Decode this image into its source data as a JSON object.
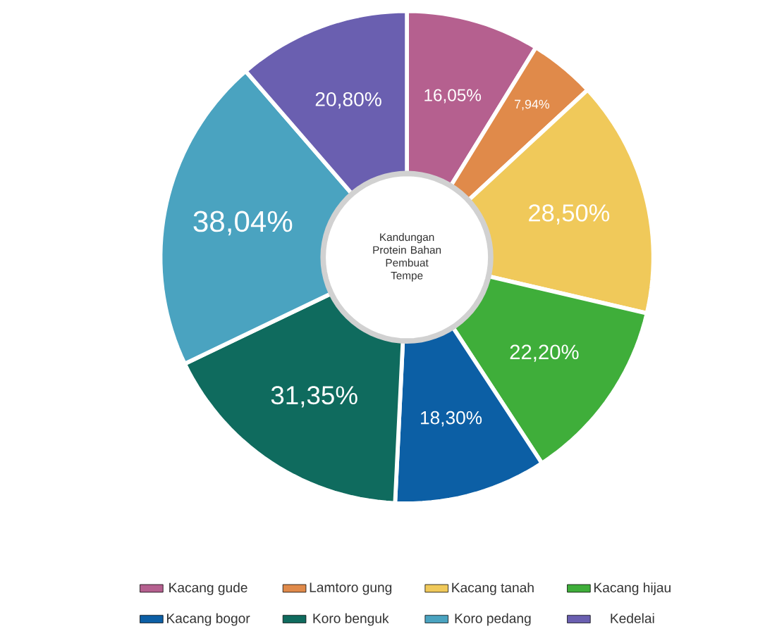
{
  "chart_data": {
    "type": "donut",
    "title": "Kandungan Protein Bahan Pembuat Tempe",
    "categories": [
      "Kacang gude",
      "Lamtoro gung",
      "Kacang tanah",
      "Kacang hijau",
      "Kacang bogor",
      "Koro benguk",
      "Koro pedang",
      "Kedelai"
    ],
    "values": [
      16.05,
      7.94,
      28.5,
      22.2,
      18.3,
      31.35,
      38.04,
      20.8
    ],
    "value_labels": [
      "16,05%",
      "7,94%",
      "28,50%",
      "22,20%",
      "18,30%",
      "31,35%",
      "38,04%",
      "20,80%"
    ],
    "colors": [
      "#b5608f",
      "#e08a4a",
      "#f0c95a",
      "#3fae3a",
      "#0c5fa5",
      "#0f6b5e",
      "#4aa3c0",
      "#6a5fb0"
    ],
    "legend": "bottom"
  }
}
